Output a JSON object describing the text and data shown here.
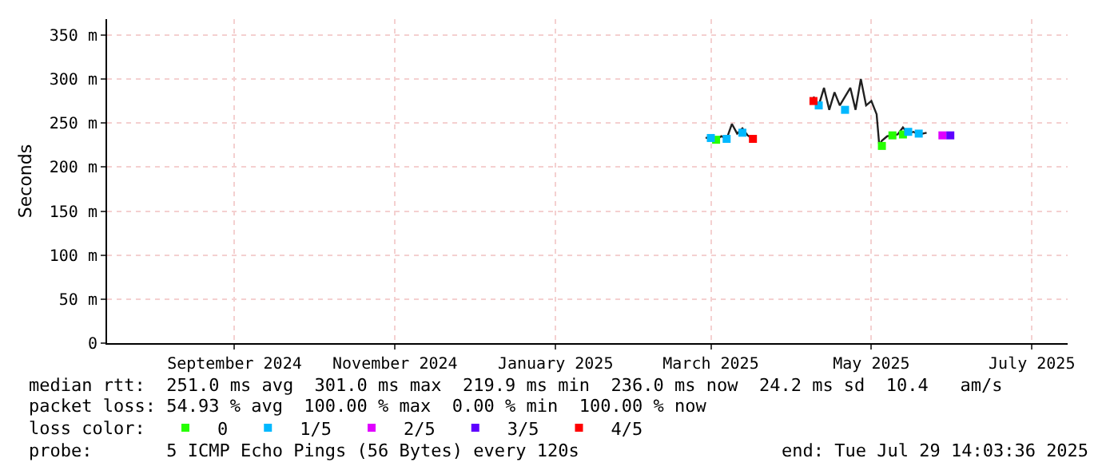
{
  "chart_data": {
    "type": "line",
    "ylabel": "Seconds",
    "xlim": [
      "2024-07-29T14:03",
      "2025-07-29T14:03"
    ],
    "xticks": [
      {
        "value": "2024-09-16",
        "label": "September 2024"
      },
      {
        "value": "2024-11-16",
        "label": "November 2024"
      },
      {
        "value": "2025-01-16",
        "label": "January 2025"
      },
      {
        "value": "2025-03-16",
        "label": "March 2025"
      },
      {
        "value": "2025-05-16",
        "label": "May 2025"
      },
      {
        "value": "2025-07-16",
        "label": "July 2025"
      }
    ],
    "ylim": [
      0,
      368
    ],
    "yticks": [
      0,
      {
        "value": 50,
        "label": "50 m"
      },
      {
        "value": 100,
        "label": "100 m"
      },
      {
        "value": 150,
        "label": "150 m"
      },
      {
        "value": 200,
        "label": "200 m"
      },
      {
        "value": 250,
        "label": "250 m"
      },
      {
        "value": 300,
        "label": "300 m"
      },
      {
        "value": 350,
        "label": "350 m"
      }
    ],
    "grid": true,
    "legend": "bottom",
    "legend_title": "loss color:",
    "series": [
      {
        "color": "#202020",
        "marker": "none",
        "line_style": "solid",
        "x": [
          "2025-03-14",
          "2025-03-16",
          "2025-03-18",
          "2025-03-20",
          "2025-03-22",
          "2025-03-24",
          "2025-03-26",
          "2025-03-28",
          "2025-03-30",
          "2025-04-01",
          "2025-04-12",
          "2025-04-24",
          "2025-04-26",
          "2025-04-28",
          "2025-04-30",
          "2025-05-02",
          "2025-05-04",
          "2025-05-06",
          "2025-05-08",
          "2025-05-10",
          "2025-05-12",
          "2025-05-14",
          "2025-05-16",
          "2025-05-18",
          "2025-05-19",
          "2025-05-20",
          "2025-05-22",
          "2025-05-24",
          "2025-05-26",
          "2025-05-28",
          "2025-05-30",
          "2025-06-01",
          "2025-06-03",
          "2025-06-06"
        ],
        "values": [
          233,
          234,
          231,
          235,
          232,
          249,
          238,
          244,
          236,
          232,
          null,
          280,
          270,
          290,
          265,
          285,
          270,
          280,
          290,
          265,
          300,
          270,
          275,
          260,
          225,
          230,
          235,
          236,
          237,
          245,
          238,
          240,
          237,
          239
        ]
      },
      {
        "type": "scatter",
        "name": "0",
        "color": "#26ff00",
        "marker": "square",
        "x": [
          "2025-03-18",
          "2025-05-20",
          "2025-05-24",
          "2025-05-28"
        ],
        "values": [
          231,
          224,
          236,
          237
        ]
      },
      {
        "type": "scatter",
        "name": "1/5",
        "color": "#00b8ff",
        "marker": "square",
        "x": [
          "2025-03-16",
          "2025-03-22",
          "2025-03-28",
          "2025-04-26",
          "2025-05-06",
          "2025-05-30",
          "2025-06-03"
        ],
        "values": [
          233,
          232,
          239,
          270,
          265,
          240,
          238
        ]
      },
      {
        "type": "scatter",
        "name": "2/5",
        "color": "#e000ff",
        "marker": "square",
        "x": [
          "2025-06-12"
        ],
        "values": [
          236
        ]
      },
      {
        "type": "scatter",
        "name": "3/5",
        "color": "#5e00ff",
        "marker": "square",
        "x": [
          "2025-06-15"
        ],
        "values": [
          236
        ]
      },
      {
        "type": "scatter",
        "name": "4/5",
        "color": "#ff0000",
        "marker": "square",
        "x": [
          "2025-04-01",
          "2025-04-24"
        ],
        "values": [
          232,
          275
        ]
      }
    ],
    "annotations": [
      "median rtt:  251.0 ms avg  301.0 ms max  219.9 ms min  236.0 ms now  24.2 ms sd  10.4   am/s",
      "packet loss: 54.93 % avg  100.00 % max  0.00 % min  100.00 % now",
      "probe:       5 ICMP Echo Pings (56 Bytes) every 120s",
      "end: Tue Jul 29 14:03:36 2025"
    ]
  }
}
